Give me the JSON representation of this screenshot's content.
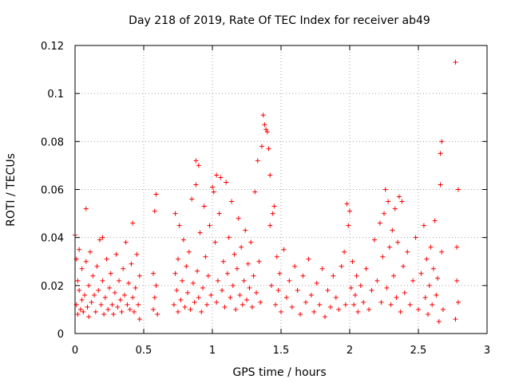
{
  "chart_data": {
    "type": "scatter",
    "title": "Day 218 of 2019, Rate Of TEC Index for receiver ab49",
    "xlabel": "GPS time / hours",
    "ylabel": "ROTI / TECUs",
    "xlim": [
      0,
      3
    ],
    "ylim": [
      0,
      0.12
    ],
    "xticks": [
      0,
      0.5,
      1,
      1.5,
      2,
      2.5,
      3
    ],
    "xtick_labels": [
      "0",
      "0.5",
      "1",
      "1.5",
      "2",
      "2.5",
      "3"
    ],
    "yticks": [
      0,
      0.02,
      0.04,
      0.06,
      0.08,
      0.1,
      0.12
    ],
    "ytick_labels": [
      "0",
      "0.02",
      "0.04",
      "0.06",
      "0.08",
      "0.1",
      "0.12"
    ],
    "grid": true,
    "marker": "+",
    "color": "#ff0000",
    "series": [
      {
        "name": "ROTI",
        "points": [
          [
            0.0,
            0.041
          ],
          [
            0.01,
            0.012
          ],
          [
            0.01,
            0.031
          ],
          [
            0.02,
            0.008
          ],
          [
            0.02,
            0.022
          ],
          [
            0.03,
            0.018
          ],
          [
            0.03,
            0.035
          ],
          [
            0.04,
            0.01
          ],
          [
            0.05,
            0.014
          ],
          [
            0.05,
            0.027
          ],
          [
            0.06,
            0.009
          ],
          [
            0.07,
            0.016
          ],
          [
            0.08,
            0.03
          ],
          [
            0.08,
            0.052
          ],
          [
            0.09,
            0.011
          ],
          [
            0.1,
            0.02
          ],
          [
            0.1,
            0.007
          ],
          [
            0.11,
            0.034
          ],
          [
            0.12,
            0.013
          ],
          [
            0.13,
            0.024
          ],
          [
            0.14,
            0.016
          ],
          [
            0.15,
            0.009
          ],
          [
            0.16,
            0.028
          ],
          [
            0.17,
            0.018
          ],
          [
            0.18,
            0.039
          ],
          [
            0.19,
            0.012
          ],
          [
            0.2,
            0.022
          ],
          [
            0.2,
            0.04
          ],
          [
            0.21,
            0.008
          ],
          [
            0.22,
            0.015
          ],
          [
            0.23,
            0.031
          ],
          [
            0.24,
            0.01
          ],
          [
            0.25,
            0.019
          ],
          [
            0.26,
            0.025
          ],
          [
            0.27,
            0.012
          ],
          [
            0.28,
            0.008
          ],
          [
            0.29,
            0.017
          ],
          [
            0.3,
            0.033
          ],
          [
            0.31,
            0.011
          ],
          [
            0.32,
            0.022
          ],
          [
            0.33,
            0.014
          ],
          [
            0.34,
            0.009
          ],
          [
            0.35,
            0.027
          ],
          [
            0.36,
            0.016
          ],
          [
            0.37,
            0.038
          ],
          [
            0.38,
            0.012
          ],
          [
            0.39,
            0.021
          ],
          [
            0.4,
            0.01
          ],
          [
            0.41,
            0.029
          ],
          [
            0.42,
            0.015
          ],
          [
            0.42,
            0.046
          ],
          [
            0.43,
            0.009
          ],
          [
            0.44,
            0.019
          ],
          [
            0.45,
            0.033
          ],
          [
            0.46,
            0.012
          ],
          [
            0.47,
            0.024
          ],
          [
            0.47,
            0.006
          ],
          [
            0.57,
            0.01
          ],
          [
            0.57,
            0.025
          ],
          [
            0.58,
            0.015
          ],
          [
            0.58,
            0.051
          ],
          [
            0.59,
            0.058
          ],
          [
            0.59,
            0.02
          ],
          [
            0.6,
            0.008
          ],
          [
            0.72,
            0.012
          ],
          [
            0.73,
            0.025
          ],
          [
            0.73,
            0.05
          ],
          [
            0.74,
            0.018
          ],
          [
            0.75,
            0.009
          ],
          [
            0.75,
            0.031
          ],
          [
            0.76,
            0.045
          ],
          [
            0.77,
            0.014
          ],
          [
            0.78,
            0.022
          ],
          [
            0.79,
            0.039
          ],
          [
            0.8,
            0.011
          ],
          [
            0.81,
            0.028
          ],
          [
            0.82,
            0.017
          ],
          [
            0.83,
            0.034
          ],
          [
            0.84,
            0.01
          ],
          [
            0.85,
            0.056
          ],
          [
            0.86,
            0.021
          ],
          [
            0.87,
            0.013
          ],
          [
            0.88,
            0.062
          ],
          [
            0.88,
            0.072
          ],
          [
            0.89,
            0.026
          ],
          [
            0.9,
            0.015
          ],
          [
            0.9,
            0.07
          ],
          [
            0.91,
            0.042
          ],
          [
            0.92,
            0.009
          ],
          [
            0.93,
            0.019
          ],
          [
            0.94,
            0.053
          ],
          [
            0.95,
            0.032
          ],
          [
            0.96,
            0.012
          ],
          [
            0.97,
            0.024
          ],
          [
            0.98,
            0.045
          ],
          [
            0.99,
            0.016
          ],
          [
            1.0,
            0.061
          ],
          [
            1.01,
            0.059
          ],
          [
            1.02,
            0.038
          ],
          [
            1.03,
            0.013
          ],
          [
            1.03,
            0.066
          ],
          [
            1.04,
            0.022
          ],
          [
            1.05,
            0.05
          ],
          [
            1.06,
            0.065
          ],
          [
            1.07,
            0.018
          ],
          [
            1.08,
            0.03
          ],
          [
            1.09,
            0.011
          ],
          [
            1.1,
            0.063
          ],
          [
            1.11,
            0.025
          ],
          [
            1.12,
            0.04
          ],
          [
            1.13,
            0.015
          ],
          [
            1.14,
            0.055
          ],
          [
            1.15,
            0.02
          ],
          [
            1.16,
            0.033
          ],
          [
            1.17,
            0.01
          ],
          [
            1.18,
            0.027
          ],
          [
            1.19,
            0.048
          ],
          [
            1.2,
            0.016
          ],
          [
            1.21,
            0.036
          ],
          [
            1.22,
            0.012
          ],
          [
            1.23,
            0.022
          ],
          [
            1.24,
            0.043
          ],
          [
            1.25,
            0.014
          ],
          [
            1.26,
            0.029
          ],
          [
            1.27,
            0.019
          ],
          [
            1.28,
            0.038
          ],
          [
            1.29,
            0.011
          ],
          [
            1.3,
            0.024
          ],
          [
            1.31,
            0.059
          ],
          [
            1.32,
            0.017
          ],
          [
            1.33,
            0.072
          ],
          [
            1.34,
            0.03
          ],
          [
            1.35,
            0.013
          ],
          [
            1.36,
            0.078
          ],
          [
            1.37,
            0.091
          ],
          [
            1.38,
            0.087
          ],
          [
            1.39,
            0.085
          ],
          [
            1.4,
            0.084
          ],
          [
            1.41,
            0.077
          ],
          [
            1.42,
            0.066
          ],
          [
            1.42,
            0.045
          ],
          [
            1.43,
            0.02
          ],
          [
            1.44,
            0.05
          ],
          [
            1.45,
            0.053
          ],
          [
            1.46,
            0.012
          ],
          [
            1.47,
            0.032
          ],
          [
            1.48,
            0.018
          ],
          [
            1.49,
            0.025
          ],
          [
            1.5,
            0.009
          ],
          [
            1.52,
            0.035
          ],
          [
            1.54,
            0.015
          ],
          [
            1.56,
            0.022
          ],
          [
            1.58,
            0.011
          ],
          [
            1.6,
            0.028
          ],
          [
            1.62,
            0.018
          ],
          [
            1.64,
            0.008
          ],
          [
            1.66,
            0.024
          ],
          [
            1.68,
            0.013
          ],
          [
            1.7,
            0.031
          ],
          [
            1.72,
            0.016
          ],
          [
            1.74,
            0.009
          ],
          [
            1.76,
            0.021
          ],
          [
            1.78,
            0.012
          ],
          [
            1.8,
            0.027
          ],
          [
            1.82,
            0.007
          ],
          [
            1.84,
            0.018
          ],
          [
            1.86,
            0.011
          ],
          [
            1.88,
            0.024
          ],
          [
            1.9,
            0.015
          ],
          [
            1.92,
            0.01
          ],
          [
            1.94,
            0.028
          ],
          [
            1.96,
            0.034
          ],
          [
            1.97,
            0.012
          ],
          [
            1.98,
            0.054
          ],
          [
            1.99,
            0.045
          ],
          [
            2.0,
            0.051
          ],
          [
            2.01,
            0.019
          ],
          [
            2.02,
            0.03
          ],
          [
            2.03,
            0.012
          ],
          [
            2.04,
            0.016
          ],
          [
            2.05,
            0.024
          ],
          [
            2.06,
            0.009
          ],
          [
            2.08,
            0.02
          ],
          [
            2.1,
            0.013
          ],
          [
            2.12,
            0.027
          ],
          [
            2.14,
            0.01
          ],
          [
            2.16,
            0.018
          ],
          [
            2.18,
            0.039
          ],
          [
            2.2,
            0.022
          ],
          [
            2.22,
            0.046
          ],
          [
            2.23,
            0.013
          ],
          [
            2.24,
            0.032
          ],
          [
            2.25,
            0.05
          ],
          [
            2.26,
            0.06
          ],
          [
            2.27,
            0.019
          ],
          [
            2.28,
            0.055
          ],
          [
            2.29,
            0.036
          ],
          [
            2.3,
            0.012
          ],
          [
            2.31,
            0.043
          ],
          [
            2.32,
            0.024
          ],
          [
            2.33,
            0.052
          ],
          [
            2.34,
            0.015
          ],
          [
            2.35,
            0.038
          ],
          [
            2.36,
            0.057
          ],
          [
            2.37,
            0.009
          ],
          [
            2.38,
            0.055
          ],
          [
            2.39,
            0.028
          ],
          [
            2.4,
            0.017
          ],
          [
            2.42,
            0.034
          ],
          [
            2.44,
            0.012
          ],
          [
            2.46,
            0.022
          ],
          [
            2.48,
            0.04
          ],
          [
            2.5,
            0.01
          ],
          [
            2.52,
            0.025
          ],
          [
            2.54,
            0.045
          ],
          [
            2.55,
            0.015
          ],
          [
            2.56,
            0.031
          ],
          [
            2.57,
            0.008
          ],
          [
            2.58,
            0.02
          ],
          [
            2.59,
            0.036
          ],
          [
            2.6,
            0.012
          ],
          [
            2.61,
            0.027
          ],
          [
            2.62,
            0.047
          ],
          [
            2.63,
            0.016
          ],
          [
            2.64,
            0.023
          ],
          [
            2.65,
            0.005
          ],
          [
            2.66,
            0.062
          ],
          [
            2.66,
            0.075
          ],
          [
            2.67,
            0.08
          ],
          [
            2.67,
            0.034
          ],
          [
            2.68,
            0.01
          ],
          [
            2.77,
            0.113
          ],
          [
            2.77,
            0.006
          ],
          [
            2.78,
            0.036
          ],
          [
            2.78,
            0.022
          ],
          [
            2.79,
            0.06
          ],
          [
            2.79,
            0.013
          ]
        ]
      }
    ]
  }
}
